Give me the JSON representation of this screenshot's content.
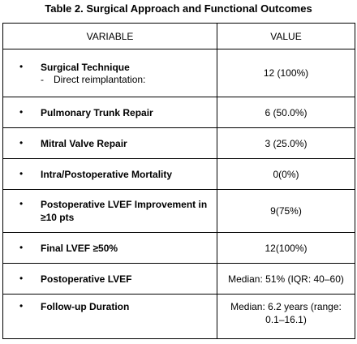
{
  "title": "Table 2. Surgical Approach and Functional Outcomes",
  "headers": {
    "variable": "VARIABLE",
    "value": "VALUE"
  },
  "rows": [
    {
      "variable": "Surgical Technique",
      "sub": "Direct reimplantation:",
      "value": "12 (100%)"
    },
    {
      "variable": "Pulmonary Trunk Repair",
      "value": "6 (50.0%)"
    },
    {
      "variable": "Mitral Valve Repair",
      "value": "3 (25.0%)"
    },
    {
      "variable": "Intra/Postoperative Mortality",
      "value": "0(0%)"
    },
    {
      "variable": "Postoperative LVEF Improvement in ≥10 pts",
      "value": "9(75%)"
    },
    {
      "variable": "Final LVEF ≥50%",
      "value": "12(100%)"
    },
    {
      "variable": "Postoperative LVEF",
      "value": "Median: 51% (IQR: 40–60)"
    },
    {
      "variable": "Follow-up Duration",
      "value": "Median: 6.2 years (range: 0.1–16.1)"
    }
  ],
  "bullet": "•",
  "dash": "-"
}
